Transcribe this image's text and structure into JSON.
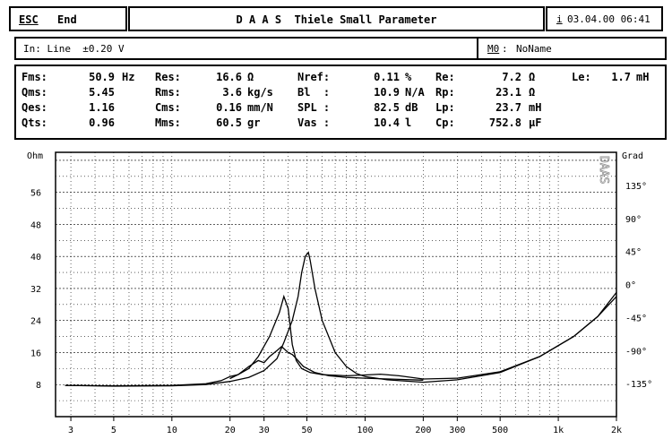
{
  "header": {
    "esc_key": "ESC",
    "esc_label": "End",
    "title": "D A A S  Thiele Small Parameter",
    "info_key": "i",
    "datetime": "03.04.00 06:41"
  },
  "input_bar": {
    "input_text": "In: Line  ±0.20 V",
    "m0_key": "M0",
    "m0_value": "NoName"
  },
  "params": {
    "col1": [
      {
        "label": "Fms:",
        "value": "50.9",
        "unit": "Hz"
      },
      {
        "label": "Qms:",
        "value": "5.45",
        "unit": ""
      },
      {
        "label": "Qes:",
        "value": "1.16",
        "unit": ""
      },
      {
        "label": "Qts:",
        "value": "0.96",
        "unit": ""
      }
    ],
    "col2": [
      {
        "label": "Res:",
        "value": "16.6",
        "unit": "Ω"
      },
      {
        "label": "Rms:",
        "value": "3.6",
        "unit": "kg/s"
      },
      {
        "label": "Cms:",
        "value": "0.16",
        "unit": "mm/N"
      },
      {
        "label": "Mms:",
        "value": "60.5",
        "unit": "gr"
      }
    ],
    "col3": [
      {
        "label": "Nref:",
        "value": "0.11",
        "unit": "%"
      },
      {
        "label": "Bl  :",
        "value": "10.9",
        "unit": "N/A"
      },
      {
        "label": "SPL :",
        "value": "82.5",
        "unit": "dB"
      },
      {
        "label": "Vas :",
        "value": "10.4",
        "unit": "l"
      }
    ],
    "col4": [
      {
        "label": "Re:",
        "value": "7.2",
        "unit": "Ω"
      },
      {
        "label": "Rp:",
        "value": "23.1",
        "unit": "Ω"
      },
      {
        "label": "Lp:",
        "value": "23.7",
        "unit": "mH"
      },
      {
        "label": "Cp:",
        "value": "752.8",
        "unit": "µF"
      }
    ],
    "col5": [
      {
        "label": "Le:",
        "value": "1.7",
        "unit": "mH"
      }
    ]
  },
  "chart_data": {
    "type": "line",
    "y_left_label": "Ohm",
    "y_right_label": "Grad",
    "watermark": "DAAS",
    "x_scale": "log",
    "xlim": [
      2.5,
      2000
    ],
    "ylim": [
      0,
      66
    ],
    "x_ticks": [
      3,
      5,
      10,
      20,
      30,
      50,
      100,
      200,
      300,
      500,
      1000,
      2000
    ],
    "x_tick_labels": [
      "3",
      "5",
      "10",
      "20",
      "30",
      "50",
      "100",
      "200",
      "300",
      "500",
      "1k",
      "2k"
    ],
    "y_ticks": [
      8,
      16,
      24,
      32,
      40,
      48,
      56
    ],
    "y_tick_labels": [
      "8",
      "16",
      "24",
      "32",
      "40",
      "48",
      "56"
    ],
    "y_right_ticks": [
      -135,
      -90,
      -45,
      0,
      45,
      90,
      135
    ],
    "y_right_tick_labels": [
      "-135°",
      "-90°",
      "-45°",
      "0°",
      "45°",
      "90°",
      "135°"
    ],
    "series": [
      {
        "values": [
          [
            2.8,
            7.8
          ],
          [
            5,
            7.6
          ],
          [
            10,
            7.7
          ],
          [
            15,
            8.0
          ],
          [
            20,
            8.8
          ],
          [
            25,
            9.8
          ],
          [
            30,
            11.5
          ],
          [
            35,
            14.5
          ],
          [
            38,
            18.5
          ],
          [
            42,
            24
          ],
          [
            45,
            30
          ],
          [
            47,
            36
          ],
          [
            49,
            40
          ],
          [
            50.9,
            41
          ],
          [
            52,
            39
          ],
          [
            55,
            32
          ],
          [
            60,
            24
          ],
          [
            70,
            16
          ],
          [
            80,
            12.5
          ],
          [
            90,
            10.8
          ],
          [
            100,
            10
          ],
          [
            130,
            9.2
          ],
          [
            200,
            8.6
          ],
          [
            300,
            9.2
          ],
          [
            500,
            11
          ],
          [
            800,
            15
          ],
          [
            1200,
            20
          ],
          [
            1600,
            25
          ],
          [
            2000,
            31
          ]
        ]
      },
      {
        "values": [
          [
            2.8,
            7.8
          ],
          [
            5,
            7.7
          ],
          [
            10,
            7.8
          ],
          [
            15,
            8.2
          ],
          [
            18,
            9
          ],
          [
            20,
            10
          ],
          [
            22,
            10.5
          ],
          [
            25,
            12
          ],
          [
            28,
            15
          ],
          [
            32,
            20
          ],
          [
            36,
            26
          ],
          [
            38,
            30
          ],
          [
            40,
            27
          ],
          [
            42,
            18
          ],
          [
            44,
            14
          ],
          [
            47,
            12
          ],
          [
            52,
            11
          ],
          [
            60,
            10.5
          ],
          [
            80,
            10.2
          ],
          [
            100,
            10.4
          ],
          [
            120,
            10.6
          ],
          [
            150,
            10.2
          ],
          [
            200,
            9.4
          ],
          [
            300,
            9.6
          ],
          [
            500,
            11.2
          ],
          [
            800,
            15
          ],
          [
            1200,
            20
          ],
          [
            1600,
            25
          ],
          [
            2000,
            30
          ]
        ]
      },
      {
        "values": [
          [
            20,
            9.5
          ],
          [
            22,
            10.5
          ],
          [
            25,
            12.5
          ],
          [
            28,
            14
          ],
          [
            30,
            13.5
          ],
          [
            32,
            15
          ],
          [
            35,
            16.5
          ],
          [
            37,
            17.5
          ],
          [
            40,
            16
          ],
          [
            42,
            15.5
          ],
          [
            44,
            14.5
          ],
          [
            48,
            12.5
          ],
          [
            55,
            11
          ],
          [
            65,
            10.2
          ],
          [
            80,
            9.8
          ],
          [
            100,
            9.6
          ],
          [
            150,
            9.3
          ],
          [
            200,
            9.1
          ]
        ]
      }
    ]
  }
}
